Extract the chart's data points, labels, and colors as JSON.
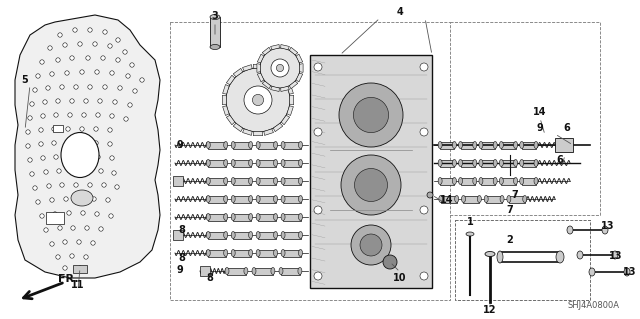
{
  "background_color": "#ffffff",
  "diagram_code": "SHJ4A0800A",
  "fig_w": 6.4,
  "fig_h": 3.19,
  "dpi": 100
}
